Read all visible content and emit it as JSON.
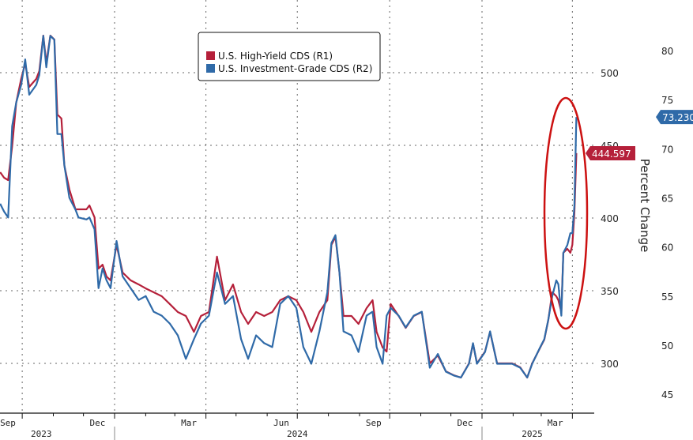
{
  "chart_data": {
    "type": "line",
    "title": "",
    "ylabel_right": "Percent Change",
    "left_axis": {
      "ticks": [
        300,
        350,
        400,
        450,
        500
      ],
      "range": [
        279,
        542
      ]
    },
    "right_axis": {
      "ticks": [
        45,
        50,
        55,
        60,
        65,
        70,
        75,
        80
      ],
      "range": [
        44,
        81.9
      ]
    },
    "x_ticks": [
      {
        "label": "Sep",
        "date": "2023-09-15"
      },
      {
        "label": "Dec",
        "date": "2023-12-15"
      },
      {
        "label": "Mar",
        "date": "2024-03-15"
      },
      {
        "label": "Jun",
        "date": "2024-06-15"
      },
      {
        "label": "Sep",
        "date": "2024-09-15"
      },
      {
        "label": "Dec",
        "date": "2024-12-15"
      },
      {
        "label": "Mar",
        "date": "2025-03-15"
      }
    ],
    "years": [
      {
        "label": "2023",
        "date": "2023-10-20"
      },
      {
        "label": "2024",
        "date": "2024-07-01"
      },
      {
        "label": "2025",
        "date": "2025-02-20"
      }
    ],
    "grid": true,
    "legend_placement": "top-center",
    "colors": {
      "hy": "#b5203a",
      "ig": "#2f6aa8",
      "annotation": "#cc1111"
    },
    "annotation": "red ellipse around late March 2025 spike",
    "series": [
      {
        "name": "U.S. High-Yield CDS (R1)",
        "axis": "left",
        "last_label": "444.597",
        "x": [
          "2023-09-09",
          "2023-09-13",
          "2023-09-17",
          "2023-09-21",
          "2023-09-25",
          "2023-09-30",
          "2023-10-04",
          "2023-10-08",
          "2023-10-15",
          "2023-10-18",
          "2023-10-22",
          "2023-10-25",
          "2023-10-29",
          "2023-11-02",
          "2023-11-05",
          "2023-11-09",
          "2023-11-12",
          "2023-11-17",
          "2023-11-23",
          "2023-11-26",
          "2023-12-04",
          "2023-12-07",
          "2023-12-12",
          "2023-12-16",
          "2023-12-20",
          "2023-12-24",
          "2023-12-28",
          "2024-01-03",
          "2024-01-09",
          "2024-01-17",
          "2024-01-25",
          "2024-02-01",
          "2024-02-09",
          "2024-02-17",
          "2024-02-25",
          "2024-03-04",
          "2024-03-12",
          "2024-03-20",
          "2024-03-27",
          "2024-04-04",
          "2024-04-12",
          "2024-04-20",
          "2024-04-28",
          "2024-05-06",
          "2024-05-13",
          "2024-05-21",
          "2024-05-29",
          "2024-06-06",
          "2024-06-14",
          "2024-06-22",
          "2024-06-30",
          "2024-07-07",
          "2024-07-15",
          "2024-07-23",
          "2024-07-31",
          "2024-08-04",
          "2024-08-08",
          "2024-08-12",
          "2024-08-16",
          "2024-08-24",
          "2024-08-31",
          "2024-09-08",
          "2024-09-14",
          "2024-09-18",
          "2024-09-24",
          "2024-09-28",
          "2024-10-02",
          "2024-10-10",
          "2024-10-17",
          "2024-10-25",
          "2024-11-02",
          "2024-11-10",
          "2024-11-18",
          "2024-11-26",
          "2024-12-04",
          "2024-12-11",
          "2024-12-19",
          "2024-12-23",
          "2024-12-27",
          "2025-01-04",
          "2025-01-09",
          "2025-01-16",
          "2025-01-24",
          "2025-01-31",
          "2025-02-08",
          "2025-02-15",
          "2025-02-20",
          "2025-02-28",
          "2025-03-04",
          "2025-03-08",
          "2025-03-12",
          "2025-03-16",
          "2025-03-18",
          "2025-03-21",
          "2025-03-23",
          "2025-03-27",
          "2025-03-30",
          "2025-04-01",
          "2025-04-03",
          "2025-04-05"
        ],
        "values": [
          431.5,
          427.7,
          426.1,
          449.5,
          479.3,
          495.7,
          506.5,
          490.2,
          495.7,
          501.1,
          525.5,
          506.5,
          525.5,
          522.8,
          471.2,
          468.5,
          435.9,
          419.6,
          406.0,
          406.0,
          406.0,
          408.7,
          400.5,
          365.2,
          367.9,
          359.8,
          357.1,
          381.5,
          362.5,
          357.1,
          354.3,
          351.6,
          348.9,
          346.2,
          340.8,
          335.3,
          332.6,
          321.7,
          332.6,
          335.3,
          373.4,
          343.5,
          354.3,
          335.3,
          327.2,
          335.3,
          332.6,
          335.3,
          343.5,
          346.2,
          343.5,
          335.3,
          321.7,
          335.3,
          343.5,
          381.5,
          387.0,
          362.5,
          332.6,
          332.6,
          327.2,
          338.0,
          343.5,
          321.7,
          310.9,
          308.1,
          340.8,
          332.6,
          324.4,
          332.6,
          335.3,
          300.0,
          305.4,
          294.5,
          291.8,
          290.2,
          300.0,
          313.6,
          300.0,
          308.1,
          321.7,
          300.0,
          300.0,
          300.0,
          297.3,
          290.2,
          300.0,
          310.9,
          316.3,
          329.9,
          348.9,
          346.2,
          343.5,
          335.3,
          376.1,
          378.8,
          376.1,
          381.5,
          403.3,
          444.597
        ]
      },
      {
        "name": "U.S. Investment-Grade CDS (R2)",
        "axis": "right",
        "last_label": "73.230",
        "values": [
          64.4,
          63.6,
          63.0,
          72.3,
          74.7,
          76.5,
          79.1,
          75.5,
          76.5,
          77.5,
          81.5,
          78.3,
          81.5,
          81.1,
          71.5,
          71.5,
          68.3,
          65.0,
          63.8,
          63.0,
          62.8,
          63.0,
          61.8,
          55.8,
          57.8,
          56.6,
          55.8,
          60.6,
          57.0,
          55.8,
          54.6,
          55.0,
          53.4,
          53.0,
          52.2,
          51.0,
          48.6,
          50.6,
          52.2,
          53.0,
          57.4,
          54.2,
          55.0,
          50.6,
          48.6,
          51.0,
          50.2,
          49.8,
          54.2,
          55.0,
          53.8,
          49.8,
          48.1,
          51.4,
          55.4,
          60.4,
          61.2,
          57.4,
          51.4,
          51.0,
          49.3,
          53.0,
          53.4,
          49.8,
          48.1,
          53.0,
          53.8,
          53.0,
          51.8,
          53.0,
          53.4,
          47.7,
          49.1,
          47.3,
          46.9,
          46.7,
          48.1,
          50.2,
          48.1,
          49.3,
          51.4,
          48.1,
          48.1,
          48.1,
          47.7,
          46.7,
          48.1,
          49.8,
          50.6,
          52.6,
          55.0,
          56.6,
          56.2,
          53.0,
          59.4,
          60.2,
          61.4,
          61.4,
          64.2,
          73.23
        ]
      }
    ]
  }
}
